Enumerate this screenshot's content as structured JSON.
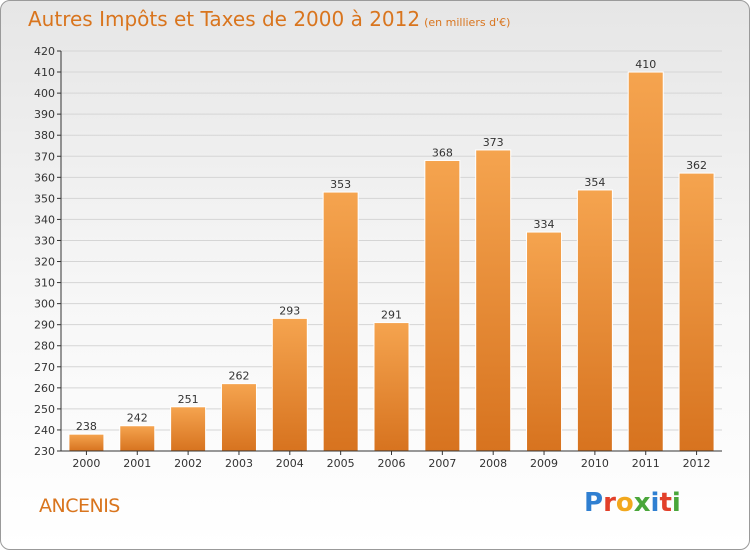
{
  "title": "Autres Impôts et Taxes de 2000 à 2012",
  "subtitle": "(en milliers d'€)",
  "city": "ANCENIS",
  "logo": {
    "letters": [
      {
        "char": "P",
        "color": "#2f7fd1"
      },
      {
        "char": "r",
        "color": "#e2402a"
      },
      {
        "char": "o",
        "color": "#f2a81d"
      },
      {
        "char": "x",
        "color": "#4aa63a"
      },
      {
        "char": "i",
        "color": "#2f7fd1"
      },
      {
        "char": "t",
        "color": "#e2402a"
      },
      {
        "char": "i",
        "color": "#4aa63a"
      }
    ]
  },
  "colors": {
    "bar_light": "#f5a44f",
    "bar_dark": "#d7731f",
    "grid": "#d5d5d5",
    "axis": "#333333",
    "text": "#333333",
    "accent": "#d9751e"
  },
  "chart_data": {
    "type": "bar",
    "title": "Autres Impôts et Taxes de 2000 à 2012",
    "subtitle": "(en milliers d'€)",
    "categories": [
      "2000",
      "2001",
      "2002",
      "2003",
      "2004",
      "2005",
      "2006",
      "2007",
      "2008",
      "2009",
      "2010",
      "2011",
      "2012"
    ],
    "values": [
      238,
      242,
      251,
      262,
      293,
      353,
      291,
      368,
      373,
      334,
      354,
      410,
      362
    ],
    "ylim": [
      230,
      420
    ],
    "yticks": [
      230,
      240,
      250,
      260,
      270,
      280,
      290,
      300,
      310,
      320,
      330,
      340,
      350,
      360,
      370,
      380,
      390,
      400,
      410,
      420
    ],
    "grid": true,
    "data_labels": true
  }
}
